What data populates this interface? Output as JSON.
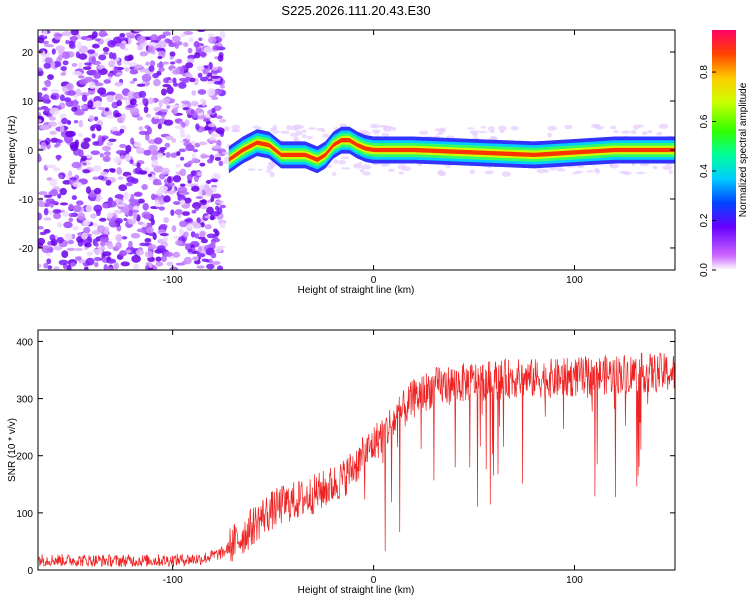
{
  "title": "S225.2026.111.20.43.E30",
  "chart_data": [
    {
      "type": "heatmap",
      "title": "S225.2026.111.20.43.E30",
      "xlabel": "Height of straight line (km)",
      "ylabel": "Frequency (Hz)",
      "xlim": [
        -167,
        150
      ],
      "ylim": [
        -24.5,
        24.5
      ],
      "xticks": [
        -100,
        0,
        100
      ],
      "yticks": [
        -20,
        -10,
        0,
        10,
        20
      ],
      "colorbar": {
        "label": "Normalized spectral amplitude",
        "range": [
          0,
          0.97
        ],
        "ticks": [
          "0.0",
          "0.2",
          "0.4",
          "0.6",
          "0.8"
        ],
        "tick_values": [
          0.0,
          0.2,
          0.4,
          0.6,
          0.8
        ]
      },
      "ridge": {
        "description_x": [
          -72,
          -65,
          -58,
          -52,
          -46,
          -40,
          -34,
          -28,
          -24,
          -20,
          -16,
          -12,
          -8,
          -4,
          0,
          20,
          50,
          80,
          100,
          120,
          150
        ],
        "description_y": [
          -2,
          0,
          1.5,
          1,
          -1,
          -1,
          -1,
          -2,
          -1,
          1,
          2,
          2,
          1,
          0.3,
          0,
          0,
          -0.5,
          -1,
          -0.5,
          0,
          0
        ]
      },
      "noise_region_x": [
        -167,
        -75
      ]
    },
    {
      "type": "line",
      "xlabel": "Height of straight line (km)",
      "ylabel": "SNR (10 * v/v)",
      "xlim": [
        -167,
        150
      ],
      "ylim": [
        0,
        420
      ],
      "xticks": [
        -100,
        0,
        100
      ],
      "yticks": [
        0,
        100,
        200,
        300,
        400
      ],
      "series": [
        {
          "name": "SNR",
          "color": "#ee2222",
          "x": [
            -167,
            -150,
            -125,
            -100,
            -85,
            -75,
            -65,
            -55,
            -45,
            -35,
            -25,
            -15,
            -5,
            0,
            10,
            20,
            30,
            50,
            70,
            90,
            110,
            130,
            150
          ],
          "values": [
            18,
            17,
            16,
            17,
            20,
            30,
            60,
            95,
            115,
            125,
            140,
            160,
            200,
            220,
            260,
            300,
            320,
            330,
            335,
            335,
            340,
            345,
            345
          ]
        }
      ]
    }
  ]
}
